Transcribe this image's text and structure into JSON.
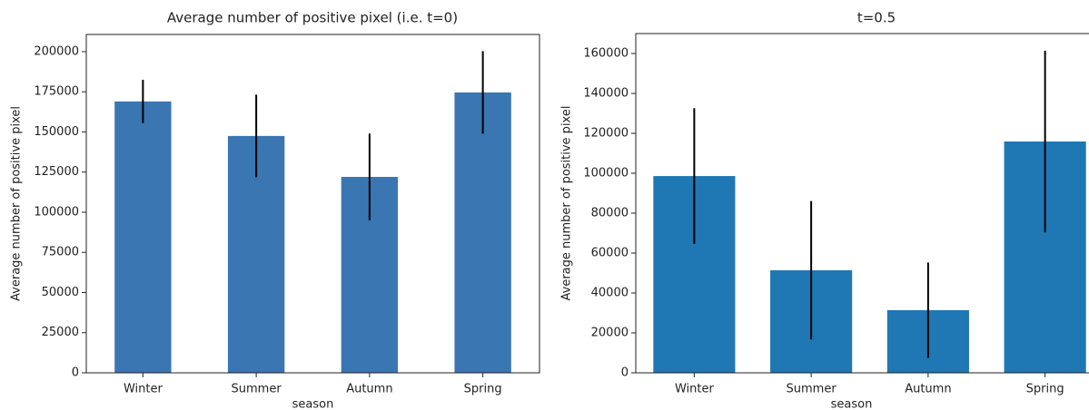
{
  "chart_data": [
    {
      "type": "bar",
      "title": "Average number of positive pixel (i.e. t=0)",
      "xlabel": "season",
      "ylabel": "Average number of positive pixel",
      "categories": [
        "Winter",
        "Summer",
        "Autumn",
        "Spring"
      ],
      "values": [
        169000,
        147500,
        122000,
        174600
      ],
      "errors": [
        13500,
        25700,
        27000,
        25700
      ],
      "color": "#3a76b2",
      "ylim": [
        0,
        210700
      ],
      "yticks": [
        0,
        25000,
        50000,
        75000,
        100000,
        125000,
        150000,
        175000,
        200000
      ]
    },
    {
      "type": "bar",
      "title": "t=0.5",
      "xlabel": "season",
      "ylabel": "Average number of positive pixel",
      "categories": [
        "Winter",
        "Summer",
        "Autumn",
        "Spring"
      ],
      "values": [
        98600,
        51400,
        31400,
        115900
      ],
      "errors": [
        34000,
        34700,
        23900,
        45500
      ],
      "color": "#1f77b4",
      "ylim": [
        0,
        170000
      ],
      "yticks": [
        0,
        20000,
        40000,
        60000,
        80000,
        100000,
        120000,
        140000,
        160000
      ]
    }
  ]
}
